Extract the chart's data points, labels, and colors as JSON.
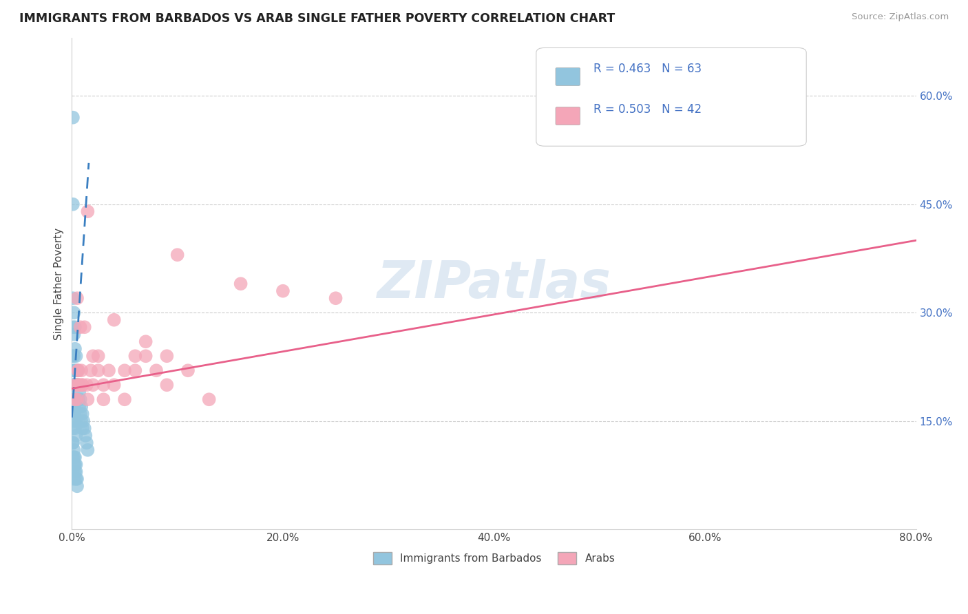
{
  "title": "IMMIGRANTS FROM BARBADOS VS ARAB SINGLE FATHER POVERTY CORRELATION CHART",
  "source": "Source: ZipAtlas.com",
  "ylabel": "Single Father Poverty",
  "xlim": [
    0.0,
    0.8
  ],
  "ylim": [
    0.0,
    0.68
  ],
  "xticks": [
    0.0,
    0.2,
    0.4,
    0.6,
    0.8
  ],
  "xtick_labels": [
    "0.0%",
    "20.0%",
    "40.0%",
    "60.0%",
    "80.0%"
  ],
  "yticks": [
    0.15,
    0.3,
    0.45,
    0.6
  ],
  "ytick_labels": [
    "15.0%",
    "30.0%",
    "45.0%",
    "60.0%"
  ],
  "blue_color": "#92c5de",
  "pink_color": "#f4a6b8",
  "blue_line_color": "#3a7fc1",
  "pink_line_color": "#e8608a",
  "watermark": "ZIPatlas",
  "legend_R1": "R = 0.463",
  "legend_N1": "N = 63",
  "legend_R2": "R = 0.503",
  "legend_N2": "N = 42",
  "label1": "Immigrants from Barbados",
  "label2": "Arabs",
  "blue_x": [
    0.001,
    0.001,
    0.001,
    0.001,
    0.001,
    0.001,
    0.002,
    0.002,
    0.002,
    0.002,
    0.002,
    0.003,
    0.003,
    0.003,
    0.003,
    0.004,
    0.004,
    0.004,
    0.005,
    0.005,
    0.005,
    0.006,
    0.006,
    0.007,
    0.007,
    0.008,
    0.008,
    0.009,
    0.009,
    0.01,
    0.01,
    0.011,
    0.012,
    0.013,
    0.014,
    0.015,
    0.001,
    0.001,
    0.002,
    0.002,
    0.003,
    0.001,
    0.001,
    0.002,
    0.003,
    0.004,
    0.001,
    0.001,
    0.002,
    0.003,
    0.004,
    0.001,
    0.002,
    0.003,
    0.004,
    0.005,
    0.001,
    0.002,
    0.003,
    0.004,
    0.005,
    0.001,
    0.002
  ],
  "blue_y": [
    0.57,
    0.45,
    0.32,
    0.28,
    0.24,
    0.22,
    0.3,
    0.27,
    0.24,
    0.22,
    0.2,
    0.28,
    0.25,
    0.22,
    0.2,
    0.24,
    0.22,
    0.2,
    0.22,
    0.2,
    0.18,
    0.2,
    0.18,
    0.19,
    0.17,
    0.18,
    0.16,
    0.17,
    0.15,
    0.16,
    0.14,
    0.15,
    0.14,
    0.13,
    0.12,
    0.11,
    0.2,
    0.18,
    0.17,
    0.16,
    0.15,
    0.18,
    0.16,
    0.15,
    0.14,
    0.13,
    0.14,
    0.12,
    0.11,
    0.1,
    0.09,
    0.12,
    0.1,
    0.09,
    0.08,
    0.07,
    0.1,
    0.09,
    0.08,
    0.07,
    0.06,
    0.08,
    0.07
  ],
  "pink_x": [
    0.004,
    0.005,
    0.006,
    0.007,
    0.008,
    0.009,
    0.01,
    0.012,
    0.014,
    0.015,
    0.018,
    0.02,
    0.025,
    0.03,
    0.035,
    0.04,
    0.05,
    0.06,
    0.07,
    0.08,
    0.09,
    0.1,
    0.003,
    0.004,
    0.005,
    0.006,
    0.007,
    0.01,
    0.015,
    0.02,
    0.025,
    0.03,
    0.04,
    0.05,
    0.06,
    0.07,
    0.09,
    0.11,
    0.13,
    0.16,
    0.2,
    0.25
  ],
  "pink_y": [
    0.2,
    0.32,
    0.22,
    0.2,
    0.28,
    0.22,
    0.2,
    0.28,
    0.2,
    0.44,
    0.22,
    0.24,
    0.24,
    0.2,
    0.22,
    0.29,
    0.22,
    0.24,
    0.26,
    0.22,
    0.24,
    0.38,
    0.18,
    0.2,
    0.18,
    0.22,
    0.2,
    0.2,
    0.18,
    0.2,
    0.22,
    0.18,
    0.2,
    0.18,
    0.22,
    0.24,
    0.2,
    0.22,
    0.18,
    0.34,
    0.33,
    0.32
  ],
  "pink_trend_start_x": 0.0,
  "pink_trend_start_y": 0.195,
  "pink_trend_end_x": 0.8,
  "pink_trend_end_y": 0.4,
  "blue_trend_x0": 0.0,
  "blue_trend_x1": 0.016,
  "blue_intercept": 0.155,
  "blue_slope": 22.0
}
